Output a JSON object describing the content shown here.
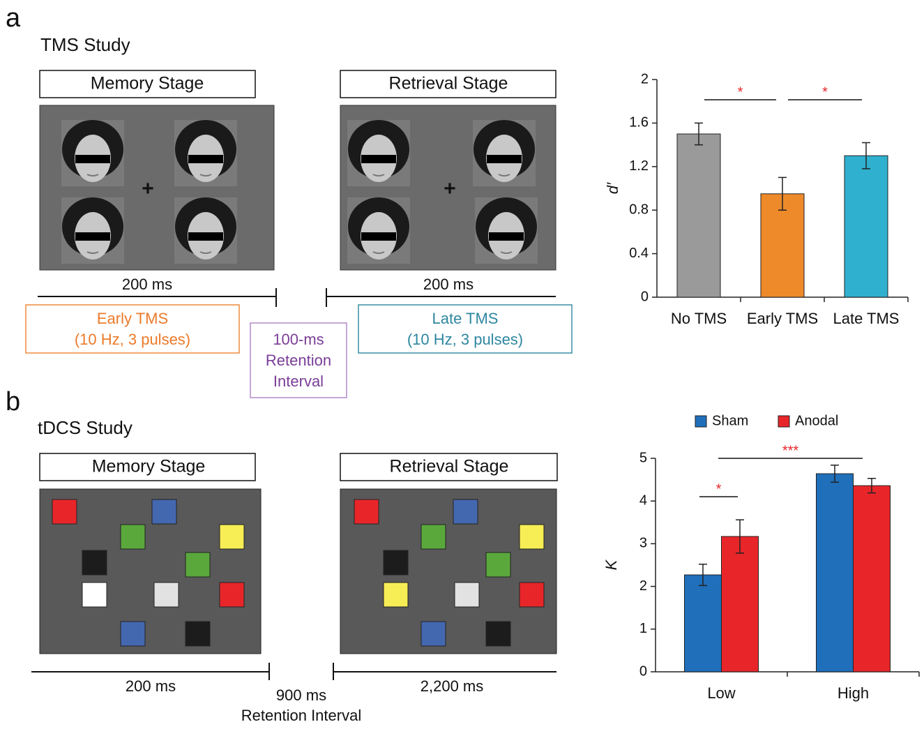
{
  "panels": [
    {
      "label": "a",
      "title": "TMS Study",
      "memory_stage": "Memory Stage",
      "retrieval_stage": "Retrieval Stage",
      "memory_duration": "200 ms",
      "retrieval_duration": "200 ms",
      "early": [
        "Early TMS",
        "(10 Hz, 3 pulses)"
      ],
      "retention": [
        "100-ms",
        "Retention",
        "Interval"
      ],
      "late": [
        "Late TMS",
        "(10 Hz, 3 pulses)"
      ]
    },
    {
      "label": "b",
      "title": "tDCS Study",
      "memory_stage": "Memory Stage",
      "retrieval_stage": "Retrieval Stage",
      "memory_duration": "200 ms",
      "retention": [
        "900 ms",
        "Retention Interval"
      ],
      "retrieval_duration": "2,200 ms"
    }
  ],
  "chart_data": [
    {
      "type": "bar",
      "ylabel": "d′",
      "categories": [
        "No TMS",
        "Early TMS",
        "Late TMS"
      ],
      "values": [
        1.5,
        0.95,
        1.3
      ],
      "errors": [
        0.1,
        0.15,
        0.12
      ],
      "colors": [
        "#9a9a9a",
        "#ee8a2a",
        "#2fb0cf"
      ],
      "ylim": [
        0,
        2
      ],
      "yticks": [
        0,
        0.4,
        0.8,
        1.2,
        1.6,
        2
      ],
      "annotations": [
        "*",
        "*"
      ]
    },
    {
      "type": "grouped_bar",
      "ylabel": "K",
      "categories": [
        "Low",
        "High"
      ],
      "series": [
        {
          "name": "Sham",
          "color": "#1f6fba",
          "values": [
            2.27,
            4.64
          ],
          "errors": [
            0.25,
            0.2
          ]
        },
        {
          "name": "Anodal",
          "color": "#e8262a",
          "values": [
            3.17,
            4.36
          ],
          "errors": [
            0.39,
            0.17
          ]
        }
      ],
      "ylim": [
        0,
        5
      ],
      "yticks": [
        0,
        1,
        2,
        3,
        4,
        5
      ],
      "legend": "top",
      "annotations": [
        "*",
        "***"
      ]
    }
  ]
}
